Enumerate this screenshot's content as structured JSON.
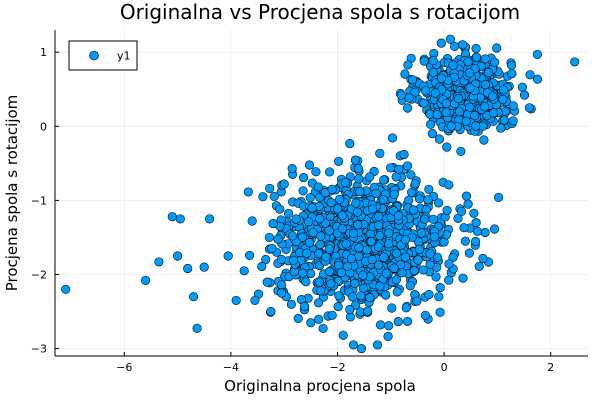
{
  "chart_data": {
    "type": "scatter",
    "title": "Originalna vs Procjena spola s rotacijom",
    "xlabel": "Originalna procjena spola",
    "ylabel": "Procjena spola s rotacijom",
    "xlim": [
      -7.3,
      2.7
    ],
    "ylim": [
      -3.1,
      1.3
    ],
    "x_ticks": [
      -6,
      -4,
      -2,
      0,
      2
    ],
    "x_tick_labels": [
      "−6",
      "−4",
      "−2",
      "0",
      "2"
    ],
    "y_ticks": [
      -3,
      -2,
      -1,
      0,
      1
    ],
    "y_tick_labels": [
      "−3",
      "−2",
      "−1",
      "0",
      "1"
    ],
    "grid": true,
    "legend_position": "top-left",
    "colors": {
      "marker": "#009af9",
      "marker_edge": "#000000",
      "grid": "#ebebeb",
      "axis": "#000000"
    },
    "series": [
      {
        "name": "y1",
        "clusters": [
          {
            "center": [
              0.4,
              0.45
            ],
            "spread": [
              0.42,
              0.24
            ],
            "count": 650
          },
          {
            "center": [
              -1.5,
              -1.55
            ],
            "spread": [
              0.8,
              0.42
            ],
            "count": 1100
          }
        ],
        "points": [
          [
            -7.1,
            -2.2
          ],
          [
            2.45,
            0.87
          ],
          [
            -5.6,
            -2.08
          ],
          [
            -5.35,
            -1.83
          ],
          [
            -5.1,
            -1.22
          ],
          [
            -4.95,
            -1.25
          ],
          [
            -4.7,
            -2.3
          ],
          [
            -4.4,
            -1.25
          ],
          [
            -4.05,
            -1.75
          ],
          [
            -3.9,
            -2.35
          ],
          [
            -3.75,
            -1.95
          ],
          [
            -3.55,
            -2.35
          ],
          [
            -3.25,
            -2.5
          ],
          [
            -3.0,
            -0.78
          ],
          [
            -2.85,
            -0.57
          ],
          [
            -2.1,
            -0.85
          ],
          [
            -1.7,
            -2.95
          ],
          [
            -1.55,
            -3.0
          ],
          [
            -1.25,
            -2.95
          ],
          [
            -0.85,
            -0.58
          ],
          [
            -0.75,
            -0.38
          ],
          [
            -0.3,
            -2.6
          ],
          [
            -0.35,
            -2.55
          ],
          [
            0.35,
            1.1
          ],
          [
            0.6,
            1.05
          ],
          [
            1.75,
            0.97
          ],
          [
            -0.05,
            0.65
          ],
          [
            1.6,
            0.25
          ],
          [
            -0.8,
            0.42
          ],
          [
            0.05,
            -0.28
          ],
          [
            -2.5,
            -2.65
          ],
          [
            -2.1,
            -2.55
          ],
          [
            0.4,
            -1.55
          ],
          [
            0.6,
            -1.3
          ],
          [
            -4.5,
            -1.9
          ],
          [
            -5.0,
            -1.75
          ],
          [
            -3.4,
            -0.95
          ],
          [
            -3.05,
            -2.25
          ],
          [
            -0.1,
            -2.3
          ],
          [
            0.45,
            -1.05
          ]
        ]
      }
    ]
  }
}
